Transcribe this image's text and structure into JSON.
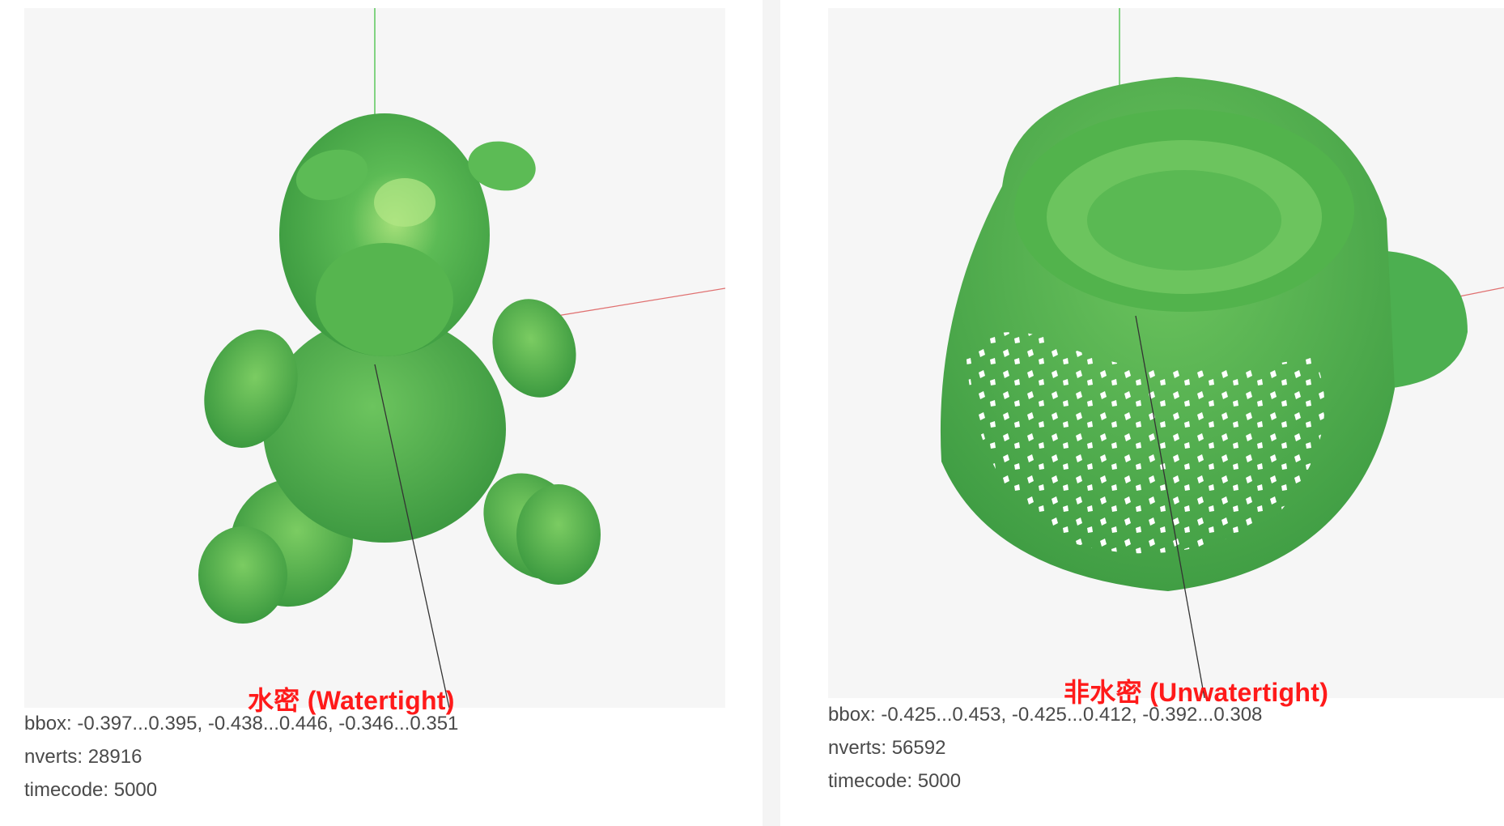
{
  "panels": [
    {
      "caption": "水密 (Watertight)",
      "bbox": "bbox: -0.397...0.395, -0.438...0.446, -0.346...0.351",
      "nverts": "nverts: 28916",
      "timecode": "timecode: 5000"
    },
    {
      "caption": "非水密 (Unwatertight)",
      "bbox": "bbox: -0.425...0.453, -0.425...0.412, -0.392...0.308",
      "nverts": "nverts: 56592",
      "timecode": "timecode: 5000"
    }
  ],
  "colors": {
    "mesh_fill": "#4caf50",
    "mesh_highlight": "#8fd36a",
    "mesh_shadow": "#2f8a36",
    "axis_y": "#43c043",
    "axis_x": "#e07070",
    "axis_z": "#333333",
    "caption": "#ff1a1a",
    "viewport_bg": "#f6f6f6"
  }
}
